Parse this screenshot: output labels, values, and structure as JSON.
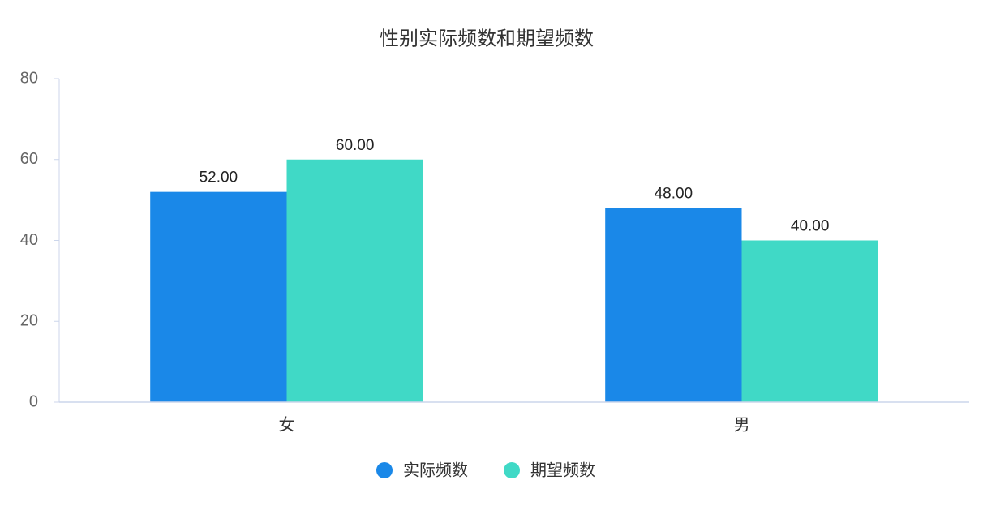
{
  "chart_data": {
    "type": "bar",
    "title": "性别实际频数和期望频数",
    "categories": [
      "女",
      "男"
    ],
    "series": [
      {
        "name": "实际频数",
        "color": "#1a88e8",
        "values": [
          52,
          48
        ],
        "value_labels": [
          "52.00",
          "48.00"
        ]
      },
      {
        "name": "期望频数",
        "color": "#40d9c6",
        "values": [
          60,
          40
        ],
        "value_labels": [
          "60.00",
          "40.00"
        ]
      }
    ],
    "ylim": [
      0,
      80
    ],
    "yticks": [
      0,
      20,
      40,
      60,
      80
    ],
    "grid": false,
    "legend": "bottom"
  }
}
